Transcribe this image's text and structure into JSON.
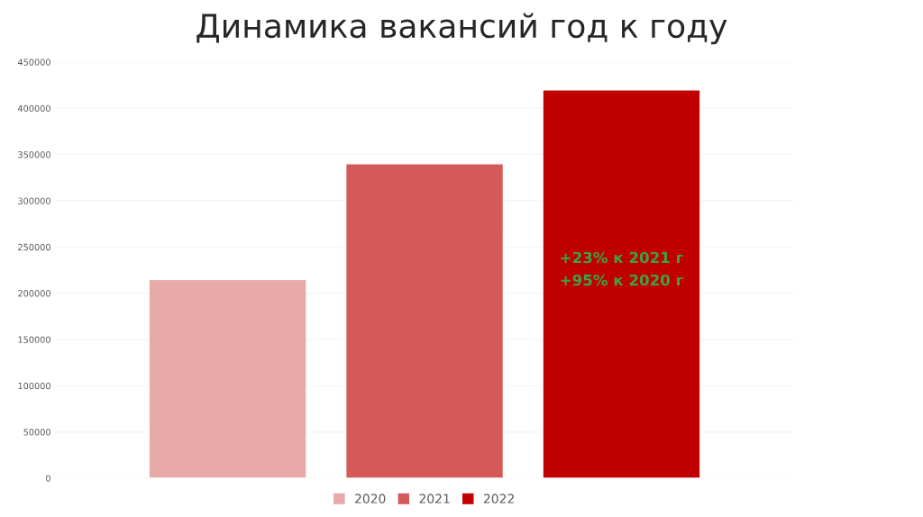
{
  "chart_data": {
    "type": "bar",
    "title": "Динамика вакансий год к году",
    "categories": [
      null
    ],
    "series": [
      {
        "name": "2020",
        "color": "#e8a9a9",
        "values": [
          215000
        ]
      },
      {
        "name": "2021",
        "color": "#d45a5a",
        "values": [
          340000
        ]
      },
      {
        "name": "2022",
        "color": "#c00000",
        "values": [
          420000
        ]
      }
    ],
    "ylim": [
      0,
      450000
    ],
    "yticks": [
      0,
      50000,
      100000,
      150000,
      200000,
      250000,
      300000,
      350000,
      400000,
      450000
    ],
    "grid": "y",
    "legend": "bottom",
    "annotations": [
      "+23% к 2021 г\n+95% к 2020 г"
    ]
  }
}
